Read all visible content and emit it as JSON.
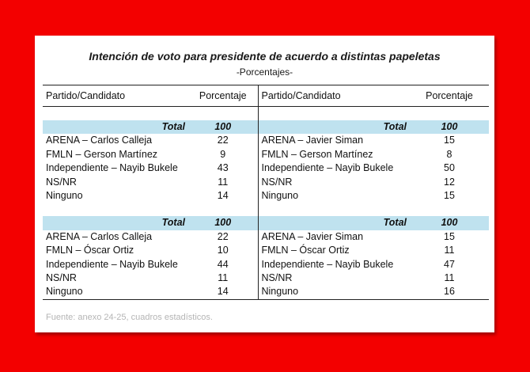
{
  "title": "Intención de voto para presidente de acuerdo a distintas papeletas",
  "subtitle": "-Porcentajes-",
  "headers": {
    "party_left": "Partido/Candidato",
    "pct_left": "Porcentaje",
    "party_right": "Partido/Candidato",
    "pct_right": "Porcentaje"
  },
  "blocks": [
    {
      "left": {
        "total_label": "Total",
        "total_value": "100",
        "rows": [
          {
            "label": "ARENA – Carlos Calleja",
            "value": "22"
          },
          {
            "label": "FMLN – Gerson Martínez",
            "value": "9"
          },
          {
            "label": "Independiente – Nayib Bukele",
            "value": "43"
          },
          {
            "label": "NS/NR",
            "value": "11"
          },
          {
            "label": "Ninguno",
            "value": "14"
          }
        ]
      },
      "right": {
        "total_label": "Total",
        "total_value": "100",
        "rows": [
          {
            "label": "ARENA – Javier Siman",
            "value": "15"
          },
          {
            "label": "FMLN – Gerson Martínez",
            "value": "8"
          },
          {
            "label": "Independiente – Nayib Bukele",
            "value": "50"
          },
          {
            "label": "NS/NR",
            "value": "12"
          },
          {
            "label": "Ninguno",
            "value": "15"
          }
        ]
      }
    },
    {
      "left": {
        "total_label": "Total",
        "total_value": "100",
        "rows": [
          {
            "label": "ARENA – Carlos Calleja",
            "value": "22"
          },
          {
            "label": "FMLN – Óscar Ortiz",
            "value": "10"
          },
          {
            "label": "Independiente – Nayib Bukele",
            "value": "44"
          },
          {
            "label": "NS/NR",
            "value": "11"
          },
          {
            "label": "Ninguno",
            "value": "14"
          }
        ]
      },
      "right": {
        "total_label": "Total",
        "total_value": "100",
        "rows": [
          {
            "label": "ARENA – Javier Siman",
            "value": "15"
          },
          {
            "label": "FMLN – Óscar Ortiz",
            "value": "11"
          },
          {
            "label": "Independiente – Nayib Bukele",
            "value": "47"
          },
          {
            "label": "NS/NR",
            "value": "11"
          },
          {
            "label": "Ninguno",
            "value": "16"
          }
        ]
      }
    }
  ],
  "source": "Fuente: anexo 24-25, cuadros estadísticos.",
  "colors": {
    "background": "#f30000",
    "total_row": "#bfe2ef"
  }
}
